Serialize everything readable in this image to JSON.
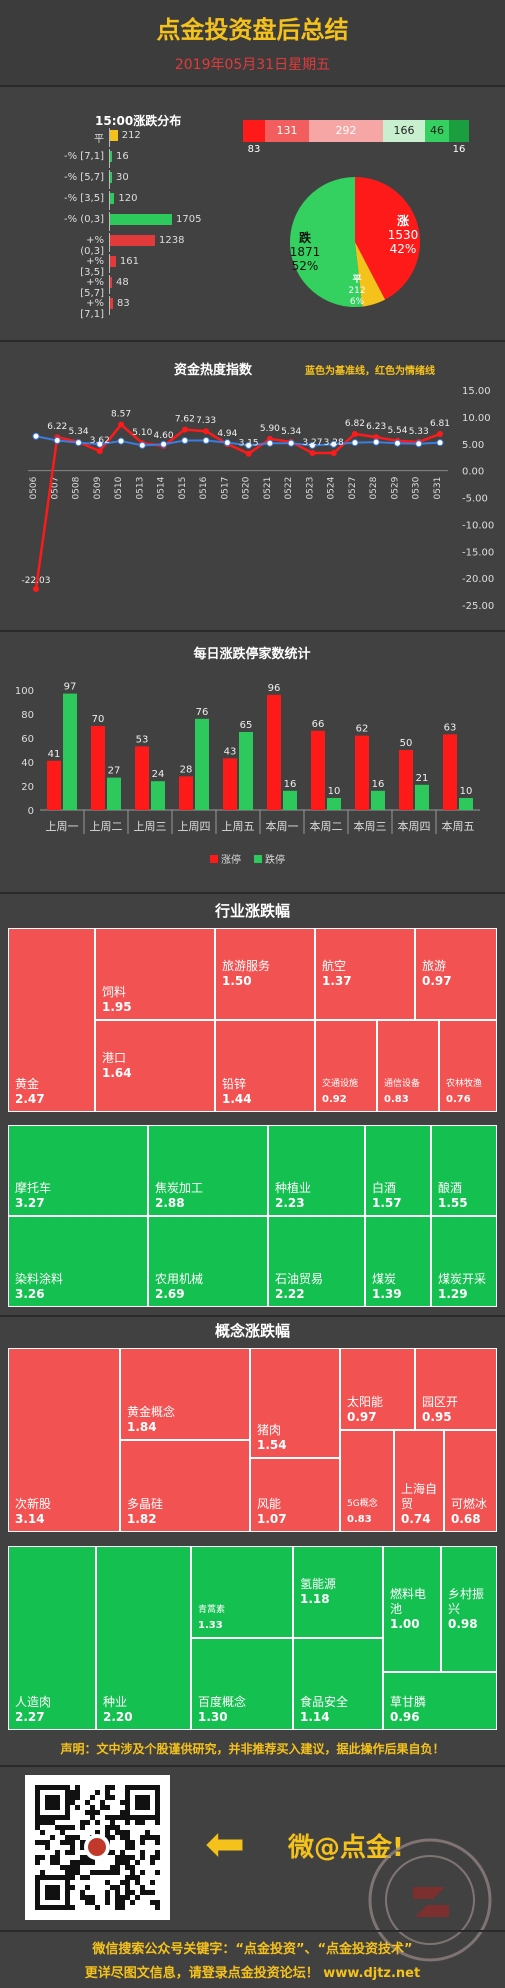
{
  "header": {
    "title": "点金投资盘后总结",
    "date": "2019年05月31日星期五"
  },
  "distribution": {
    "title": "15:00涨跌分布",
    "rows": [
      {
        "label": "平",
        "value": 212,
        "color": "#f5c21b"
      },
      {
        "label": "-% [7,1]",
        "value": 16,
        "color": "#2ec95c"
      },
      {
        "label": "-% [5,7]",
        "value": 30,
        "color": "#2ec95c"
      },
      {
        "label": "-% [3,5]",
        "value": 120,
        "color": "#2ec95c"
      },
      {
        "label": "-% (0,3]",
        "value": 1705,
        "color": "#2ec95c"
      },
      {
        "label": "+% (0,3]",
        "value": 1238,
        "color": "#e23a3a"
      },
      {
        "label": "+% [3,5]",
        "value": 161,
        "color": "#e23a3a"
      },
      {
        "label": "+% [5,7]",
        "value": 48,
        "color": "#e23a3a"
      },
      {
        "label": "+% [7,1]",
        "value": 83,
        "color": "#e23a3a"
      }
    ]
  },
  "strip": {
    "segments": [
      {
        "value": "83",
        "color": "#ff1a1a",
        "pos": "below"
      },
      {
        "value": "131",
        "color": "#f25d5d",
        "pos": "inside"
      },
      {
        "value": "292",
        "color": "#f7a6a6",
        "pos": "inside"
      },
      {
        "value": "166",
        "color": "#c8f0cf",
        "pos": "inside-dark"
      },
      {
        "value": "46",
        "color": "#34d160",
        "pos": "inside-dark"
      },
      {
        "value": "16",
        "color": "#1a9e3f",
        "pos": "below"
      }
    ]
  },
  "pie": {
    "slices": [
      {
        "name": "涨",
        "count": "1530",
        "pct": "42%",
        "value": 1530,
        "color": "#ff1a1a"
      },
      {
        "name": "平",
        "count": "212",
        "pct": "6%",
        "value": 212,
        "color": "#f5c21b"
      },
      {
        "name": "跌",
        "count": "1871",
        "pct": "52%",
        "value": 1871,
        "color": "#34d160"
      }
    ]
  },
  "chart_data": [
    {
      "type": "line",
      "title": "资金热度指数",
      "note": "蓝色为基准线，红色为情绪线",
      "x": [
        "0506",
        "0507",
        "0508",
        "0509",
        "0510",
        "0513",
        "0514",
        "0515",
        "0516",
        "0517",
        "0520",
        "0521",
        "0522",
        "0523",
        "0524",
        "0527",
        "0528",
        "0529",
        "0530",
        "0531"
      ],
      "series": [
        {
          "name": "情绪线",
          "color": "#ff1a1a",
          "values": [
            -22.03,
            6.22,
            5.34,
            3.62,
            8.57,
            5.1,
            4.6,
            7.62,
            7.33,
            4.94,
            3.15,
            5.9,
            5.34,
            3.27,
            3.28,
            6.82,
            6.23,
            5.54,
            5.33,
            6.81
          ]
        },
        {
          "name": "基准线",
          "color": "#3a7de0",
          "values": [
            6.4,
            5.6,
            5.2,
            4.9,
            5.5,
            4.7,
            4.9,
            5.6,
            5.6,
            5.2,
            4.7,
            5.1,
            5.1,
            4.7,
            4.9,
            5.2,
            5.3,
            5.1,
            5.0,
            5.2
          ]
        }
      ],
      "data_labels": [
        "-22.03",
        "6.22",
        "5.34",
        "3.62",
        "8.57",
        "5.10",
        "4.60",
        "7.62",
        "7.33",
        "4.94",
        "3.15",
        "5.90",
        "5.34",
        "3.27",
        "3.28",
        "6.82",
        "6.23",
        "5.54",
        "5.33",
        "6.81"
      ],
      "ylim": [
        -25,
        15
      ],
      "yticks": [
        "15.00",
        "10.00",
        "5.00",
        "0.00",
        "-5.00",
        "-10.00",
        "-15.00",
        "-20.00",
        "-25.00"
      ]
    },
    {
      "type": "bar",
      "title": "每日涨跌停家数统计",
      "categories": [
        "上周一",
        "上周二",
        "上周三",
        "上周四",
        "上周五",
        "本周一",
        "本周二",
        "本周三",
        "本周四",
        "本周五"
      ],
      "series": [
        {
          "name": "涨停",
          "color": "#ff1a1a",
          "values": [
            41,
            70,
            53,
            28,
            43,
            96,
            66,
            62,
            50,
            63
          ]
        },
        {
          "name": "跌停",
          "color": "#2ec95c",
          "values": [
            97,
            27,
            24,
            76,
            65,
            16,
            10,
            16,
            21,
            10
          ]
        }
      ],
      "ylim": [
        0,
        100
      ],
      "yticks": [
        "100",
        "80",
        "60",
        "40",
        "20",
        "0"
      ]
    }
  ],
  "industry": {
    "title": "行业涨跌幅",
    "up": [
      {
        "name": "黄金",
        "value": "2.47"
      },
      {
        "name": "饲料",
        "value": "1.95"
      },
      {
        "name": "港口",
        "value": "1.64"
      },
      {
        "name": "旅游服务",
        "value": "1.50"
      },
      {
        "name": "铅锌",
        "value": "1.44"
      },
      {
        "name": "航空",
        "value": "1.37"
      },
      {
        "name": "旅游",
        "value": "0.97"
      },
      {
        "name": "交通设施",
        "value": "0.92"
      },
      {
        "name": "通信设备",
        "value": "0.83"
      },
      {
        "name": "农林牧渔",
        "value": "0.76"
      }
    ],
    "down": [
      {
        "name": "摩托车",
        "value": "3.27"
      },
      {
        "name": "染料涂料",
        "value": "3.26"
      },
      {
        "name": "焦炭加工",
        "value": "2.88"
      },
      {
        "name": "农用机械",
        "value": "2.69"
      },
      {
        "name": "种植业",
        "value": "2.23"
      },
      {
        "name": "石油贸易",
        "value": "2.22"
      },
      {
        "name": "白酒",
        "value": "1.57"
      },
      {
        "name": "酿酒",
        "value": "1.55"
      },
      {
        "name": "煤炭",
        "value": "1.39"
      },
      {
        "name": "煤炭开采",
        "value": "1.29"
      }
    ]
  },
  "concept": {
    "title": "概念涨跌幅",
    "up": [
      {
        "name": "次新股",
        "value": "3.14"
      },
      {
        "name": "黄金概念",
        "value": "1.84"
      },
      {
        "name": "多晶硅",
        "value": "1.82"
      },
      {
        "name": "猪肉",
        "value": "1.54"
      },
      {
        "name": "风能",
        "value": "1.07"
      },
      {
        "name": "太阳能",
        "value": "0.97"
      },
      {
        "name": "园区开",
        "value": "0.95"
      },
      {
        "name": "5G概念",
        "value": "0.83"
      },
      {
        "name": "上海自贸",
        "value": "0.74"
      },
      {
        "name": "可燃冰",
        "value": "0.68"
      }
    ],
    "down": [
      {
        "name": "人造肉",
        "value": "2.27"
      },
      {
        "name": "种业",
        "value": "2.20"
      },
      {
        "name": "青蒿素",
        "value": "1.33"
      },
      {
        "name": "百度概念",
        "value": "1.30"
      },
      {
        "name": "氢能源",
        "value": "1.18"
      },
      {
        "name": "食品安全",
        "value": "1.14"
      },
      {
        "name": "燃料电池",
        "value": "1.00"
      },
      {
        "name": "乡村振兴",
        "value": "0.98"
      },
      {
        "name": "草甘膦",
        "value": "0.96"
      }
    ]
  },
  "disclaimer": "声明：文中涉及个股谨供研究，并非推荐买入建议，据此操作后果自负！",
  "promo": {
    "arrow": "⬅",
    "text": "微@点金!"
  },
  "footer": {
    "line1": "微信搜索公众号关键字：“点金投资”、“点金投资技术”",
    "line2": "更详尽图文信息，请登录点金投资论坛！ www.djtz.net"
  }
}
